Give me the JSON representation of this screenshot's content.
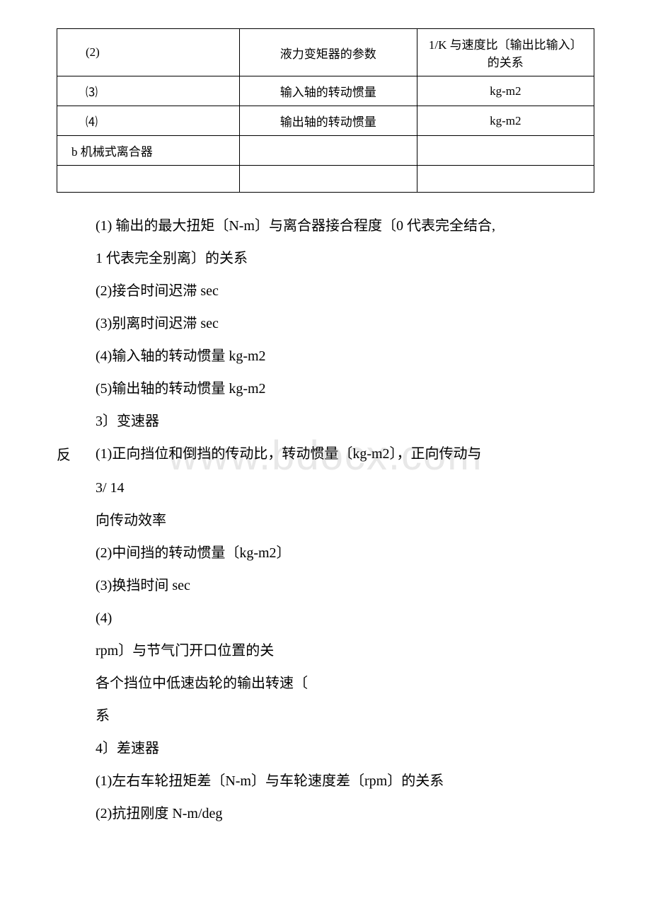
{
  "watermark": "www.bdocx.com",
  "table": {
    "rows": [
      {
        "c1": "(2)",
        "c2": "液力变矩器的参数",
        "c3": "1/K 与速度比〔输出比输入〕的关系"
      },
      {
        "c1": "⑶",
        "c2": "输入轴的转动惯量",
        "c3": "kg-m2"
      },
      {
        "c1": "⑷",
        "c2": "输出轴的转动惯量",
        "c3": "kg-m2"
      },
      {
        "c1": "b 机械式离合器",
        "c2": "",
        "c3": ""
      },
      {
        "c1": "",
        "c2": "",
        "c3": ""
      }
    ]
  },
  "body": {
    "p1": "(1) 输出的最大扭矩〔N-m〕与离合器接合程度〔0 代表完全结合,",
    "p2": "1 代表完全别离〕的关系",
    "p3": "(2)接合时间迟滞 sec",
    "p4": "(3)别离时间迟滞 sec",
    "p5": "(4)输入轴的转动惯量 kg-m2",
    "p6": "(5)输出轴的转动惯量 kg-m2",
    "p7": "3〕变速器",
    "p8": "(1)正向挡位和倒挡的传动比，转动惯量〔kg-m2〕，正向传动与",
    "p8b": "反",
    "p9": "3/ 14",
    "p10": "向传动效率",
    "p11": "(2)中间挡的转动惯量〔kg-m2〕",
    "p12": "(3)换挡时间 sec",
    "p13": "(4)",
    "p14": "rpm〕与节气门开口位置的关",
    "p15": "各个挡位中低速齿轮的输出转速〔",
    "p16": "系",
    "p17": "4〕差速器",
    "p18": "(1)左右车轮扭矩差〔N-m〕与车轮速度差〔rpm〕的关系",
    "p19": "(2)抗扭刚度 N-m/deg"
  }
}
